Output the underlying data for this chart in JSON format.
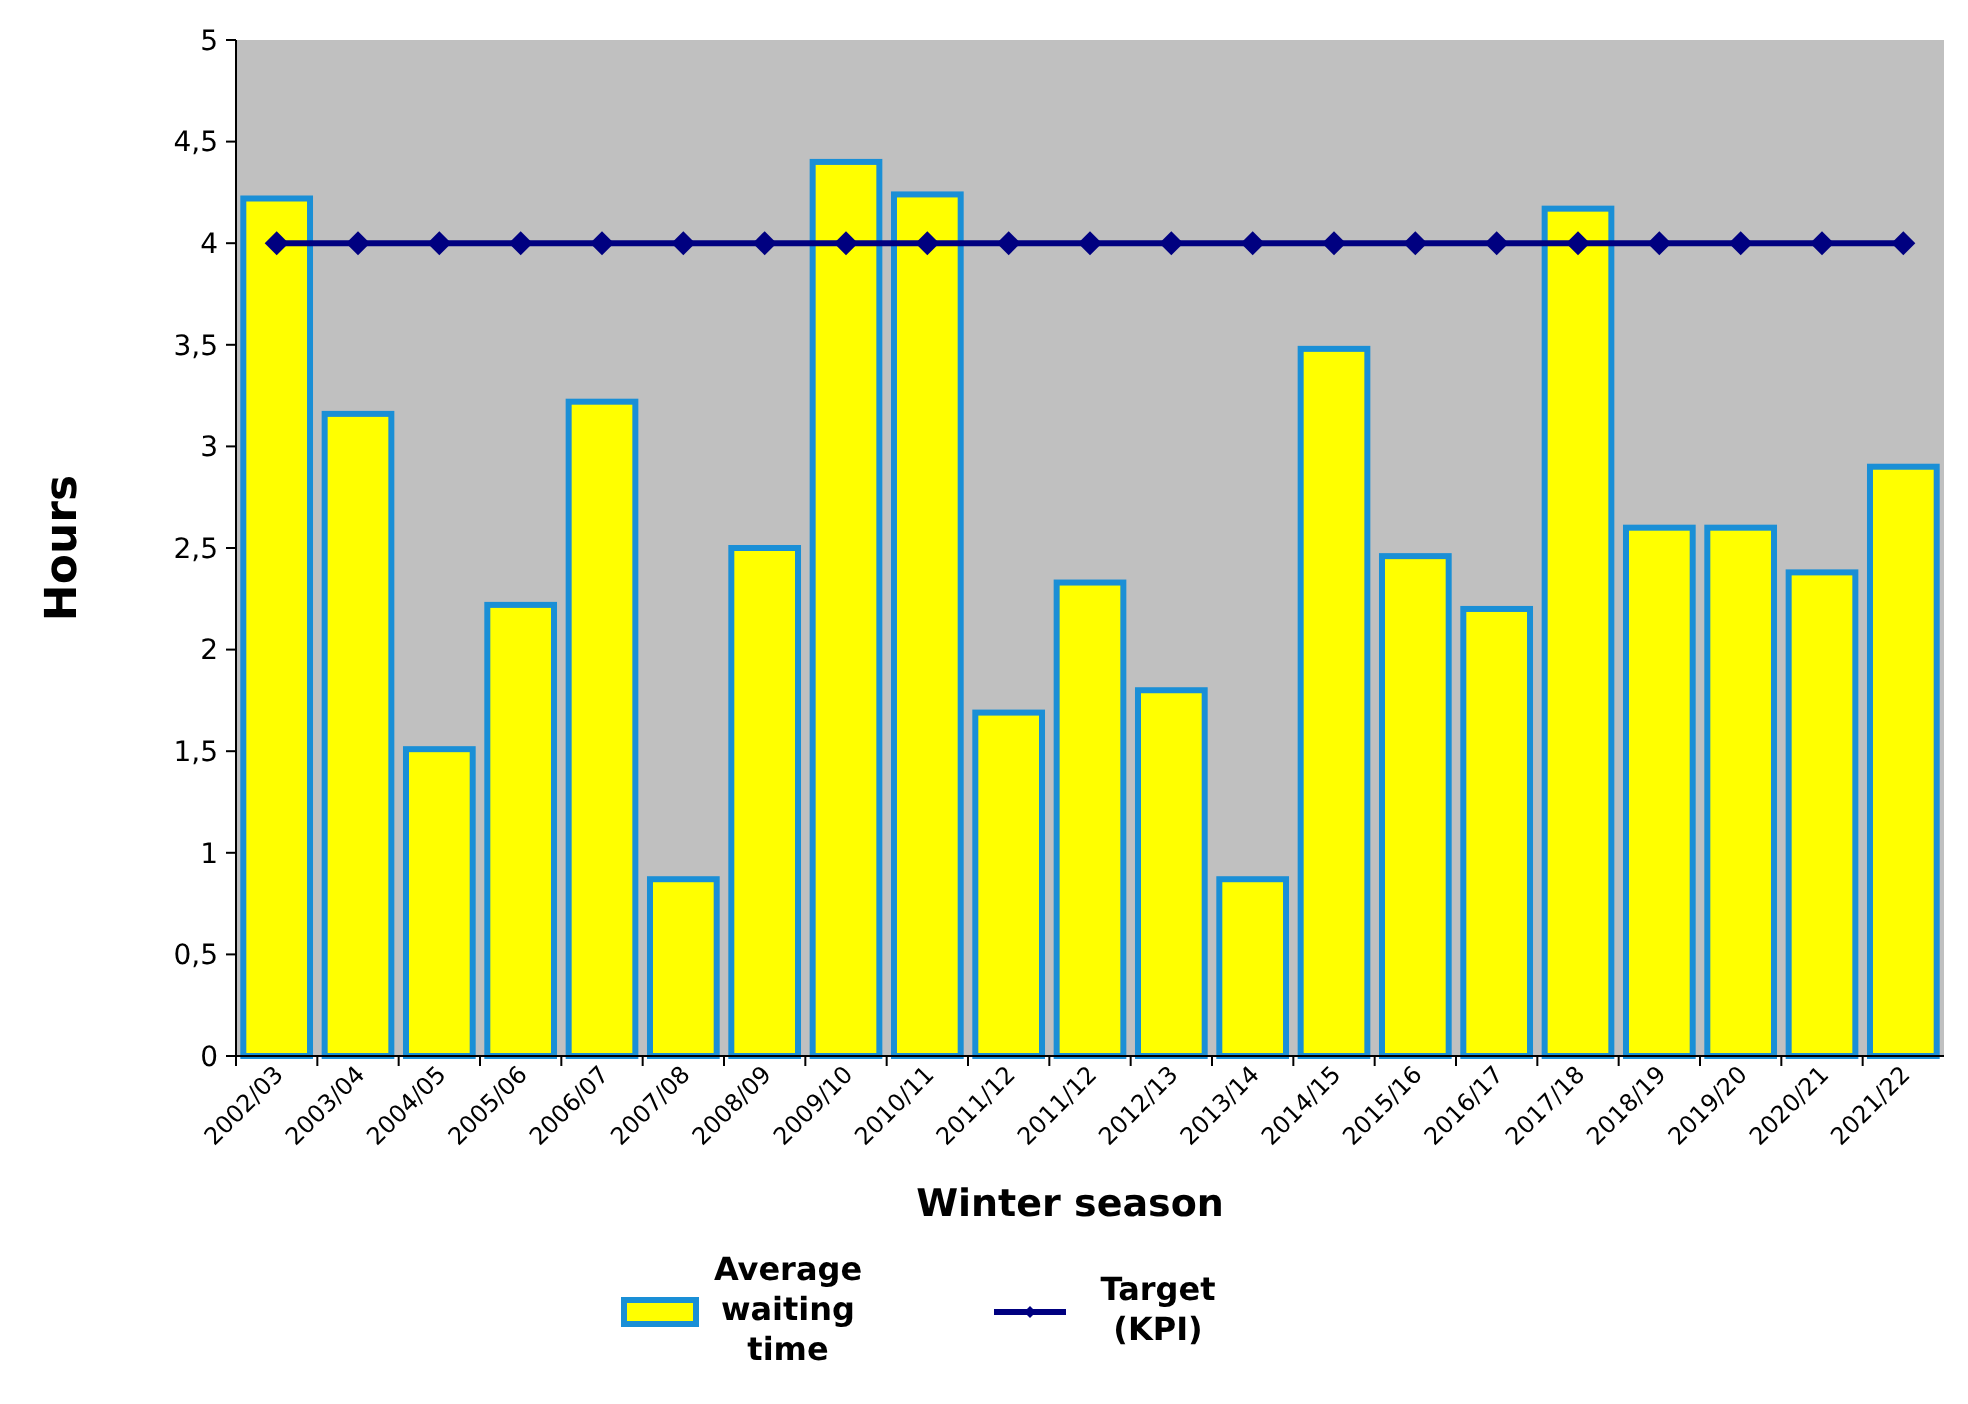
{
  "chart_data": {
    "type": "bar",
    "xlabel": "Winter season",
    "ylabel": "Hours",
    "categories": [
      "2002/03",
      "2003/04",
      "2004/05",
      "2005/06",
      "2006/07",
      "2007/08",
      "2008/09",
      "2009/10",
      "2010/11",
      "2011/12",
      "2011/12",
      "2012/13",
      "2013/14",
      "2014/15",
      "2015/16",
      "2016/17",
      "2017/18",
      "2018/19",
      "2019/20",
      "2020/21",
      "2021/22"
    ],
    "series": [
      {
        "name": "Average waiting time",
        "color": "#ffff00",
        "values": [
          4.22,
          3.16,
          1.51,
          2.22,
          3.22,
          0.87,
          2.5,
          4.4,
          4.24,
          1.69,
          2.33,
          1.8,
          0.87,
          3.48,
          2.46,
          2.2,
          4.17,
          2.6,
          2.6,
          2.38,
          2.9
        ]
      },
      {
        "name": "Target (KPI)",
        "type": "line",
        "color": "#000080",
        "marker": "diamond",
        "values": [
          4,
          4,
          4,
          4,
          4,
          4,
          4,
          4,
          4,
          4,
          4,
          4,
          4,
          4,
          4,
          4,
          4,
          4,
          4,
          4,
          4
        ]
      }
    ],
    "ylim": [
      0,
      5
    ],
    "yticks": [
      0,
      {
        "value": 0.5,
        "label": "0,5"
      },
      1,
      {
        "value": 1.5,
        "label": "1,5"
      },
      2,
      {
        "value": 2.5,
        "label": "2,5"
      },
      3,
      {
        "value": 3.5,
        "label": "3,5"
      },
      4,
      {
        "value": 4.5,
        "label": "4,5"
      },
      5
    ],
    "grid": false,
    "legend": "bottom"
  }
}
